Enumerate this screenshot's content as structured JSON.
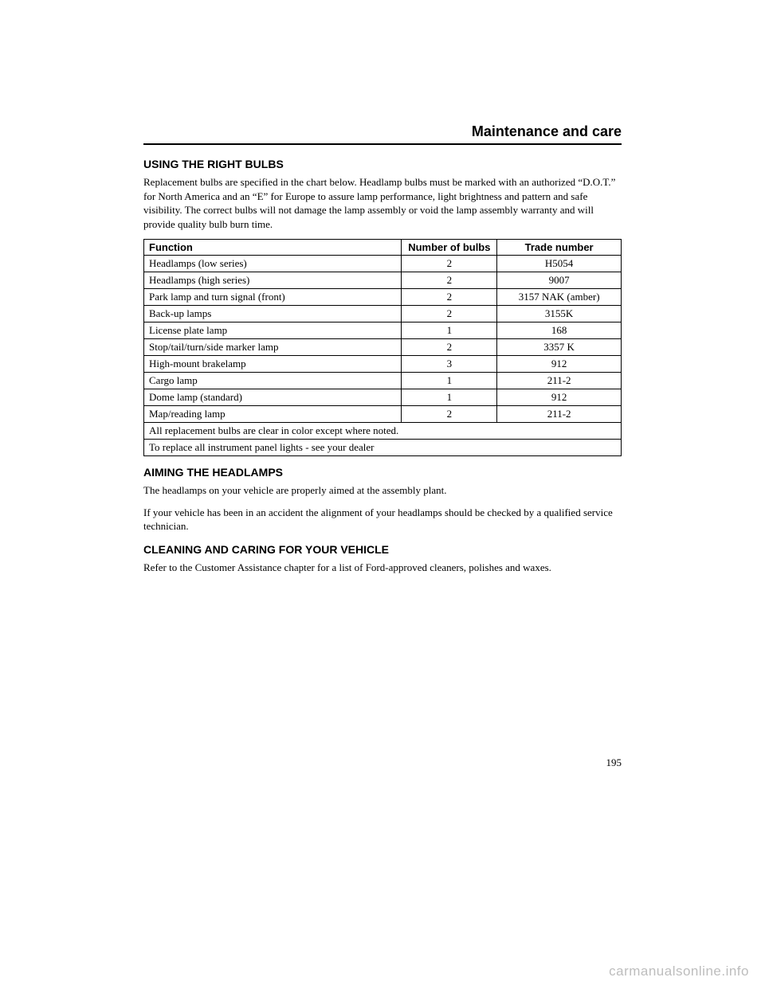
{
  "section_header": "Maintenance and care",
  "sections": {
    "right_bulbs": {
      "title": "USING THE RIGHT BULBS",
      "para": "Replacement bulbs are specified in the chart below. Headlamp bulbs must be marked with an authorized “D.O.T.” for North America and an “E” for Europe to assure lamp performance, light brightness and pattern and safe visibility. The correct bulbs will not damage the lamp assembly or void the lamp assembly warranty and will provide quality bulb burn time."
    },
    "aiming": {
      "title": "AIMING THE HEADLAMPS",
      "para1": "The headlamps on your vehicle are properly aimed at the assembly plant.",
      "para2": "If your vehicle has been in an accident the alignment of your headlamps should be checked by a qualified service technician."
    },
    "cleaning": {
      "title": "CLEANING AND CARING FOR YOUR VEHICLE",
      "para": "Refer to the Customer Assistance chapter for a list of Ford-approved cleaners, polishes and waxes."
    }
  },
  "table": {
    "headers": {
      "function": "Function",
      "number": "Number of bulbs",
      "trade": "Trade number"
    },
    "rows": [
      {
        "func": "Headlamps (low series)",
        "num": "2",
        "trade": "H5054"
      },
      {
        "func": "Headlamps (high series)",
        "num": "2",
        "trade": "9007"
      },
      {
        "func": "Park lamp and turn signal (front)",
        "num": "2",
        "trade": "3157 NAK (amber)"
      },
      {
        "func": "Back-up lamps",
        "num": "2",
        "trade": "3155K"
      },
      {
        "func": "License plate lamp",
        "num": "1",
        "trade": "168"
      },
      {
        "func": "Stop/tail/turn/side marker lamp",
        "num": "2",
        "trade": "3357 K"
      },
      {
        "func": "High-mount brakelamp",
        "num": "3",
        "trade": "912"
      },
      {
        "func": "Cargo lamp",
        "num": "1",
        "trade": "211-2"
      },
      {
        "func": "Dome lamp (standard)",
        "num": "1",
        "trade": "912"
      },
      {
        "func": "Map/reading lamp",
        "num": "2",
        "trade": "211-2"
      }
    ],
    "footnotes": {
      "line1": "All replacement bulbs are clear in color except where noted.",
      "line2": "To replace all instrument panel lights - see your dealer"
    }
  },
  "page_number": "195",
  "watermark": "carmanualsonline.info"
}
